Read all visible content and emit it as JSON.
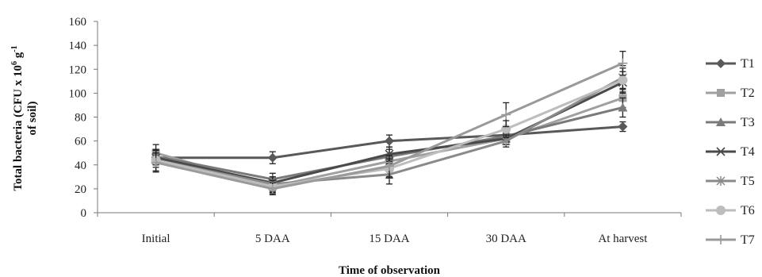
{
  "chart_data": {
    "type": "line",
    "title": "",
    "xlabel": "Time of observation",
    "ylabel_main": "Total bacteria (CFU x 10",
    "ylabel_sup1": "6",
    "ylabel_mid": " g",
    "ylabel_sup2": "-1",
    "ylabel_line2": "of soil)",
    "categories": [
      "Initial",
      "5 DAA",
      "15 DAA",
      "30 DAA",
      "At harvest"
    ],
    "ylim": [
      0,
      160
    ],
    "yticks": [
      "0",
      "20",
      "40",
      "60",
      "80",
      "100",
      "120",
      "140",
      "160"
    ],
    "grid": false,
    "legend_position": "right",
    "series": [
      {
        "name": "T1",
        "values": [
          46,
          46,
          60,
          65,
          72
        ],
        "errors": [
          6,
          5,
          5,
          4,
          4
        ],
        "color": "#595959",
        "marker": "diamond"
      },
      {
        "name": "T2",
        "values": [
          50,
          22,
          43,
          62,
          96
        ],
        "errors": [
          7,
          6,
          6,
          5,
          8
        ],
        "color": "#a0a0a0",
        "marker": "square"
      },
      {
        "name": "T3",
        "values": [
          47,
          28,
          47,
          64,
          88
        ],
        "errors": [
          6,
          5,
          6,
          5,
          8
        ],
        "color": "#7a7a7a",
        "marker": "triangle"
      },
      {
        "name": "T4",
        "values": [
          46,
          25,
          49,
          62,
          109
        ],
        "errors": [
          6,
          5,
          6,
          5,
          9
        ],
        "color": "#4a4a4a",
        "marker": "x"
      },
      {
        "name": "T5",
        "values": [
          44,
          24,
          32,
          60,
          113
        ],
        "errors": [
          9,
          6,
          8,
          5,
          10
        ],
        "color": "#8a8a8a",
        "marker": "star"
      },
      {
        "name": "T6",
        "values": [
          44,
          22,
          37,
          70,
          111
        ],
        "errors": [
          6,
          5,
          8,
          7,
          10
        ],
        "color": "#bdbdbd",
        "marker": "circle"
      },
      {
        "name": "T7",
        "values": [
          42,
          20,
          39,
          82,
          125
        ],
        "errors": [
          8,
          5,
          9,
          10,
          10
        ],
        "color": "#9a9a9a",
        "marker": "plus"
      }
    ]
  }
}
